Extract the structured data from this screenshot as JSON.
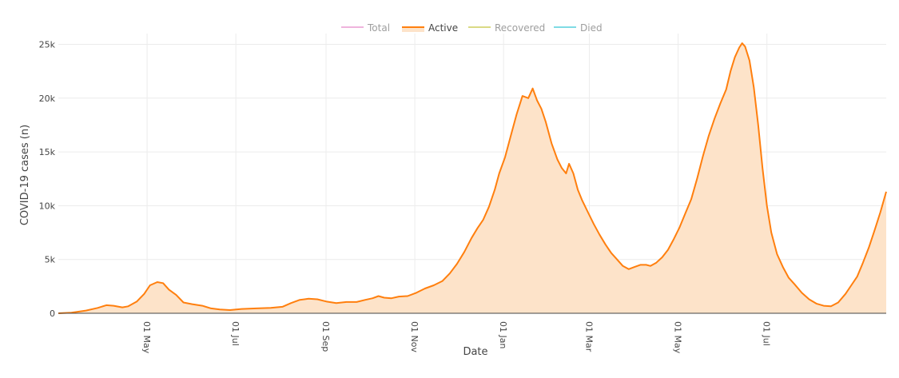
{
  "chart_data": {
    "type": "area",
    "xlabel": "Date",
    "ylabel": "COVID-19 cases (n)",
    "x_range": [
      "2020-03-01",
      "2021-08-31"
    ],
    "ylim": [
      0,
      26000
    ],
    "grid": true,
    "legend_position": "top-center",
    "colors": {
      "Total": "#e377c2",
      "Active": "#ff7f0e",
      "Active_fill": "#fde3c9",
      "Recovered": "#bcbd22",
      "Died": "#17becf"
    },
    "legend": [
      {
        "name": "Total",
        "active": false
      },
      {
        "name": "Active",
        "active": true
      },
      {
        "name": "Recovered",
        "active": false
      },
      {
        "name": "Died",
        "active": false
      }
    ],
    "y_ticks": [
      {
        "value": 0,
        "label": "0"
      },
      {
        "value": 5000,
        "label": "5k"
      },
      {
        "value": 10000,
        "label": "10k"
      },
      {
        "value": 15000,
        "label": "15k"
      },
      {
        "value": 20000,
        "label": "20k"
      },
      {
        "value": 25000,
        "label": "25k"
      }
    ],
    "x_ticks": [
      {
        "date": "2020-05-01",
        "label": "01 May"
      },
      {
        "date": "2020-07-01",
        "label": "01 Jul"
      },
      {
        "date": "2020-09-01",
        "label": "01 Sep"
      },
      {
        "date": "2020-11-01",
        "label": "01 Nov"
      },
      {
        "date": "2021-01-01",
        "label": "01 Jan"
      },
      {
        "date": "2021-03-01",
        "label": "01 Mar"
      },
      {
        "date": "2021-05-01",
        "label": "01 May"
      },
      {
        "date": "2021-07-01",
        "label": "01 Jul"
      }
    ],
    "series": [
      {
        "name": "Active",
        "points": [
          [
            "2020-03-01",
            0
          ],
          [
            "2020-03-10",
            50
          ],
          [
            "2020-03-20",
            250
          ],
          [
            "2020-03-28",
            500
          ],
          [
            "2020-04-03",
            750
          ],
          [
            "2020-04-08",
            700
          ],
          [
            "2020-04-14",
            550
          ],
          [
            "2020-04-18",
            650
          ],
          [
            "2020-04-24",
            1100
          ],
          [
            "2020-04-29",
            1800
          ],
          [
            "2020-05-03",
            2600
          ],
          [
            "2020-05-08",
            2900
          ],
          [
            "2020-05-12",
            2800
          ],
          [
            "2020-05-16",
            2200
          ],
          [
            "2020-05-21",
            1700
          ],
          [
            "2020-05-26",
            1000
          ],
          [
            "2020-06-01",
            850
          ],
          [
            "2020-06-08",
            700
          ],
          [
            "2020-06-14",
            450
          ],
          [
            "2020-06-20",
            350
          ],
          [
            "2020-06-27",
            300
          ],
          [
            "2020-07-05",
            400
          ],
          [
            "2020-07-15",
            450
          ],
          [
            "2020-07-25",
            500
          ],
          [
            "2020-08-02",
            600
          ],
          [
            "2020-08-08",
            950
          ],
          [
            "2020-08-14",
            1250
          ],
          [
            "2020-08-20",
            1350
          ],
          [
            "2020-08-26",
            1300
          ],
          [
            "2020-09-01",
            1100
          ],
          [
            "2020-09-08",
            950
          ],
          [
            "2020-09-15",
            1050
          ],
          [
            "2020-09-22",
            1050
          ],
          [
            "2020-09-28",
            1250
          ],
          [
            "2020-10-03",
            1400
          ],
          [
            "2020-10-07",
            1600
          ],
          [
            "2020-10-11",
            1450
          ],
          [
            "2020-10-16",
            1400
          ],
          [
            "2020-10-21",
            1550
          ],
          [
            "2020-10-27",
            1600
          ],
          [
            "2020-11-02",
            1900
          ],
          [
            "2020-11-08",
            2300
          ],
          [
            "2020-11-14",
            2600
          ],
          [
            "2020-11-20",
            3000
          ],
          [
            "2020-11-25",
            3700
          ],
          [
            "2020-11-30",
            4600
          ],
          [
            "2020-12-05",
            5700
          ],
          [
            "2020-12-10",
            7000
          ],
          [
            "2020-12-14",
            7900
          ],
          [
            "2020-12-18",
            8700
          ],
          [
            "2020-12-22",
            9900
          ],
          [
            "2020-12-26",
            11500
          ],
          [
            "2020-12-29",
            13000
          ],
          [
            "2021-01-02",
            14500
          ],
          [
            "2021-01-06",
            16500
          ],
          [
            "2021-01-10",
            18500
          ],
          [
            "2021-01-14",
            20200
          ],
          [
            "2021-01-18",
            20000
          ],
          [
            "2021-01-21",
            20900
          ],
          [
            "2021-01-24",
            19800
          ],
          [
            "2021-01-27",
            19000
          ],
          [
            "2021-01-30",
            17800
          ],
          [
            "2021-02-03",
            15800
          ],
          [
            "2021-02-07",
            14300
          ],
          [
            "2021-02-10",
            13500
          ],
          [
            "2021-02-13",
            13000
          ],
          [
            "2021-02-15",
            13900
          ],
          [
            "2021-02-18",
            13000
          ],
          [
            "2021-02-21",
            11500
          ],
          [
            "2021-02-24",
            10500
          ],
          [
            "2021-02-28",
            9400
          ],
          [
            "2021-03-04",
            8300
          ],
          [
            "2021-03-08",
            7300
          ],
          [
            "2021-03-12",
            6400
          ],
          [
            "2021-03-16",
            5600
          ],
          [
            "2021-03-20",
            5000
          ],
          [
            "2021-03-24",
            4400
          ],
          [
            "2021-03-28",
            4100
          ],
          [
            "2021-04-01",
            4300
          ],
          [
            "2021-04-05",
            4500
          ],
          [
            "2021-04-09",
            4500
          ],
          [
            "2021-04-12",
            4400
          ],
          [
            "2021-04-16",
            4700
          ],
          [
            "2021-04-20",
            5200
          ],
          [
            "2021-04-24",
            5900
          ],
          [
            "2021-04-28",
            6900
          ],
          [
            "2021-05-02",
            8000
          ],
          [
            "2021-05-06",
            9300
          ],
          [
            "2021-05-10",
            10600
          ],
          [
            "2021-05-14",
            12500
          ],
          [
            "2021-05-18",
            14600
          ],
          [
            "2021-05-22",
            16500
          ],
          [
            "2021-05-26",
            18100
          ],
          [
            "2021-05-30",
            19500
          ],
          [
            "2021-06-03",
            20800
          ],
          [
            "2021-06-06",
            22500
          ],
          [
            "2021-06-09",
            23800
          ],
          [
            "2021-06-12",
            24700
          ],
          [
            "2021-06-14",
            25100
          ],
          [
            "2021-06-16",
            24800
          ],
          [
            "2021-06-19",
            23500
          ],
          [
            "2021-06-22",
            21000
          ],
          [
            "2021-06-25",
            17500
          ],
          [
            "2021-06-28",
            13500
          ],
          [
            "2021-07-01",
            10000
          ],
          [
            "2021-07-04",
            7500
          ],
          [
            "2021-07-08",
            5500
          ],
          [
            "2021-07-12",
            4300
          ],
          [
            "2021-07-16",
            3300
          ],
          [
            "2021-07-20",
            2700
          ],
          [
            "2021-07-25",
            1900
          ],
          [
            "2021-07-30",
            1300
          ],
          [
            "2021-08-04",
            900
          ],
          [
            "2021-08-09",
            700
          ],
          [
            "2021-08-14",
            650
          ],
          [
            "2021-08-19",
            1000
          ],
          [
            "2021-08-24",
            1800
          ],
          [
            "2021-08-28",
            2600
          ],
          [
            "2021-09-01",
            3400
          ],
          [
            "2021-09-05",
            4700
          ],
          [
            "2021-09-09",
            6100
          ],
          [
            "2021-09-13",
            7700
          ],
          [
            "2021-09-17",
            9400
          ],
          [
            "2021-09-21",
            11300
          ]
        ]
      }
    ]
  }
}
